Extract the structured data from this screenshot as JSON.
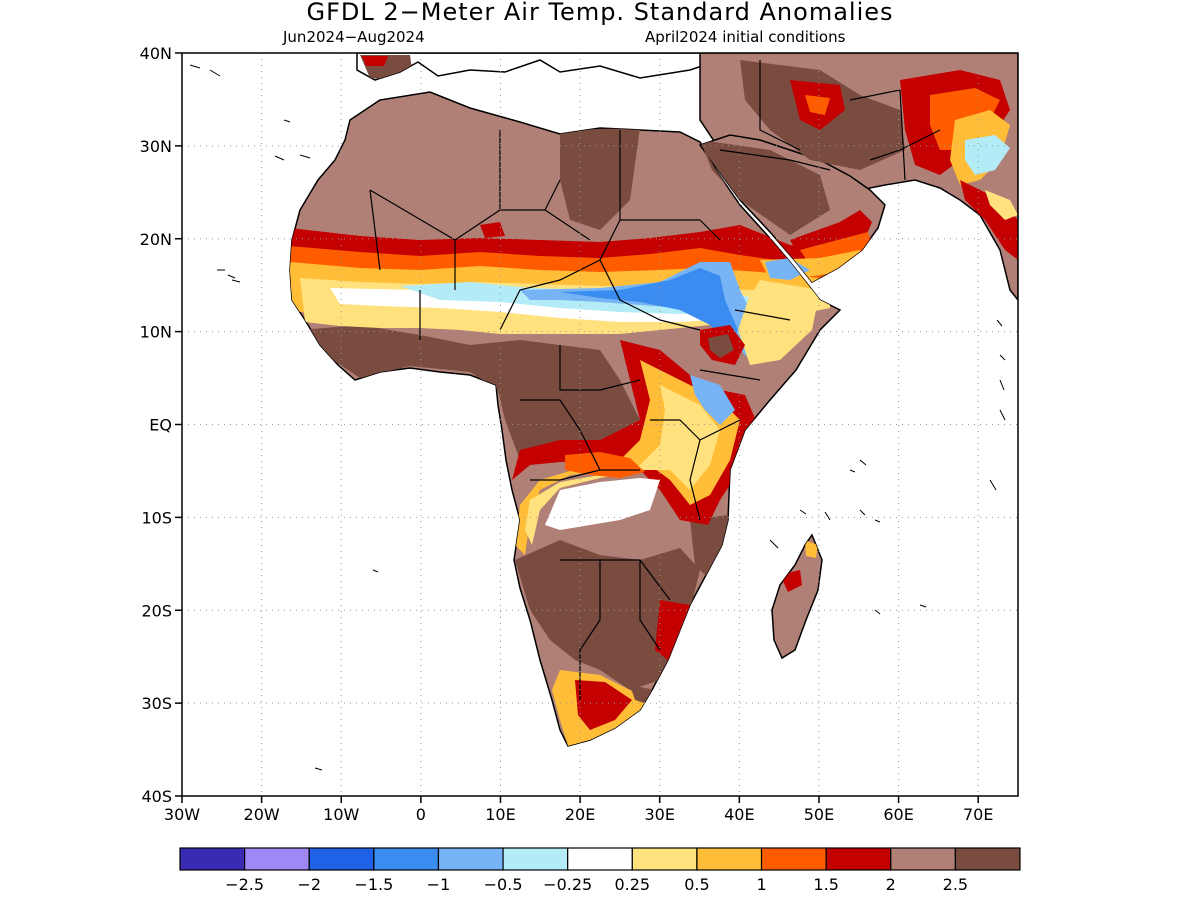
{
  "title": "GFDL 2−Meter Air Temp. Standard Anomalies",
  "period": "Jun2024−Aug2024",
  "initial_conditions": "April2024 initial conditions",
  "map": {
    "lon_range": [
      -30,
      75
    ],
    "lat_range": [
      -40,
      40
    ],
    "lat_ticks": [
      {
        "value": 40,
        "label": "40N"
      },
      {
        "value": 30,
        "label": "30N"
      },
      {
        "value": 20,
        "label": "20N"
      },
      {
        "value": 10,
        "label": "10N"
      },
      {
        "value": 0,
        "label": "EQ"
      },
      {
        "value": -10,
        "label": "10S"
      },
      {
        "value": -20,
        "label": "20S"
      },
      {
        "value": -30,
        "label": "30S"
      },
      {
        "value": -40,
        "label": "40S"
      }
    ],
    "lon_ticks": [
      {
        "value": -30,
        "label": "30W"
      },
      {
        "value": -20,
        "label": "20W"
      },
      {
        "value": -10,
        "label": "10W"
      },
      {
        "value": 0,
        "label": "0"
      },
      {
        "value": 10,
        "label": "10E"
      },
      {
        "value": 20,
        "label": "20E"
      },
      {
        "value": 30,
        "label": "30E"
      },
      {
        "value": 40,
        "label": "40E"
      },
      {
        "value": 50,
        "label": "50E"
      },
      {
        "value": 60,
        "label": "60E"
      },
      {
        "value": 70,
        "label": "70E"
      }
    ],
    "grid": "dotted",
    "region": "Africa"
  },
  "legend": {
    "colors": [
      "#3a2bb5",
      "#9f87f5",
      "#1f62e8",
      "#3a8cf0",
      "#76b4f5",
      "#b3ecf7",
      "#ffffff",
      "#ffe17e",
      "#ffbd38",
      "#ff5c00",
      "#c40000",
      "#b08077",
      "#7a4c40"
    ],
    "labels": [
      "−2.5",
      "−2",
      "−1.5",
      "−1",
      "−0.5",
      "−0.25",
      "0.25",
      "0.5",
      "1",
      "1.5",
      "2",
      "2.5"
    ]
  }
}
